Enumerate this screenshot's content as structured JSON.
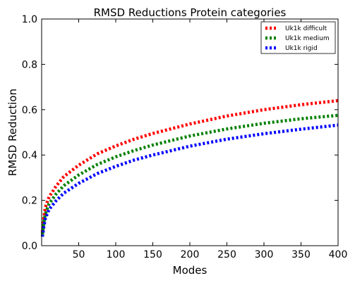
{
  "chart_data": {
    "type": "line",
    "title": "RMSD Reductions Protein categories",
    "xlabel": "Modes",
    "ylabel": "RMSD Reduction",
    "xlim": [
      0,
      400
    ],
    "ylim": [
      0.0,
      1.0
    ],
    "xticks": [
      50,
      100,
      150,
      200,
      250,
      300,
      350,
      400
    ],
    "yticks": [
      0.0,
      0.2,
      0.4,
      0.6,
      0.8,
      1.0
    ],
    "xtick_labels": [
      "50",
      "100",
      "150",
      "200",
      "250",
      "300",
      "350",
      "400"
    ],
    "ytick_labels": [
      "0.0",
      "0.2",
      "0.4",
      "0.6",
      "0.8",
      "1.0"
    ],
    "grid": false,
    "legend_position": "top-right",
    "x": [
      1,
      3,
      5,
      10,
      20,
      30,
      50,
      75,
      100,
      125,
      150,
      200,
      250,
      300,
      350,
      400
    ],
    "series": [
      {
        "name": "Uk1k difficult",
        "color": "#ff0000",
        "values": [
          0.06,
          0.125,
          0.17,
          0.215,
          0.265,
          0.305,
          0.355,
          0.405,
          0.44,
          0.47,
          0.495,
          0.537,
          0.572,
          0.6,
          0.622,
          0.64
        ]
      },
      {
        "name": "Uk1k medium",
        "color": "#008000",
        "values": [
          0.05,
          0.105,
          0.14,
          0.185,
          0.23,
          0.265,
          0.312,
          0.358,
          0.392,
          0.42,
          0.444,
          0.484,
          0.515,
          0.54,
          0.56,
          0.575
        ]
      },
      {
        "name": "Uk1k rigid",
        "color": "#0000ff",
        "values": [
          0.04,
          0.085,
          0.12,
          0.16,
          0.2,
          0.232,
          0.275,
          0.318,
          0.35,
          0.378,
          0.4,
          0.439,
          0.47,
          0.494,
          0.514,
          0.532
        ]
      }
    ]
  }
}
